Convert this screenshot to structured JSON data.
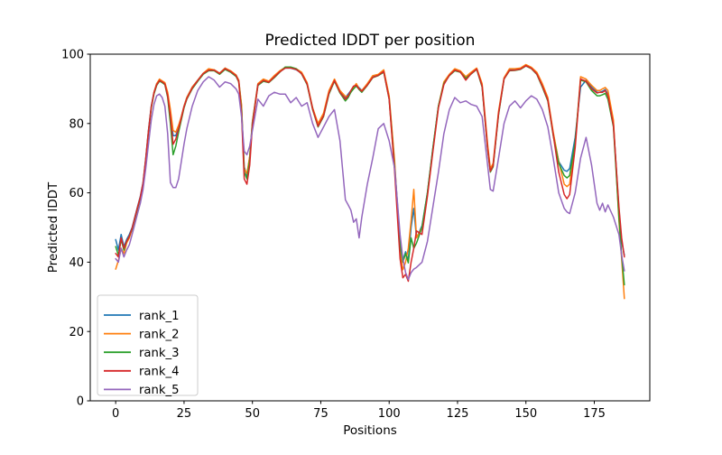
{
  "chart_data": {
    "type": "line",
    "title": "Predicted lDDT per position",
    "xlabel": "Positions",
    "ylabel": "Predicted lDDT",
    "xlim": [
      -9.3,
      195.3
    ],
    "ylim": [
      0,
      100
    ],
    "xticks": [
      0,
      25,
      50,
      75,
      100,
      125,
      150,
      175
    ],
    "yticks": [
      0,
      20,
      40,
      60,
      80,
      100
    ],
    "grid": false,
    "legend_position": "lower left",
    "line_width": 1.5,
    "axis_color": "#000000",
    "legend_border_color": "#cccccc",
    "x": [
      0,
      1,
      2,
      3,
      4,
      5,
      6,
      7,
      8,
      9,
      10,
      11,
      12,
      13,
      14,
      15,
      16,
      17,
      18,
      19,
      20,
      21,
      22,
      23,
      24,
      25,
      26,
      28,
      30,
      32,
      34,
      36,
      38,
      40,
      42,
      44,
      45,
      46,
      47,
      48,
      49,
      50,
      52,
      54,
      56,
      58,
      60,
      62,
      64,
      66,
      68,
      70,
      72,
      74,
      76,
      78,
      80,
      82,
      84,
      85,
      86,
      87,
      88,
      89,
      90,
      92,
      94,
      96,
      98,
      100,
      102,
      104,
      105,
      106,
      107,
      108,
      109,
      110,
      112,
      114,
      116,
      118,
      120,
      122,
      124,
      126,
      128,
      130,
      132,
      134,
      136,
      137,
      138,
      140,
      142,
      144,
      146,
      148,
      150,
      152,
      154,
      156,
      158,
      160,
      162,
      164,
      165,
      166,
      168,
      170,
      172,
      174,
      176,
      177,
      178,
      179,
      180,
      182,
      184,
      185,
      186
    ],
    "series": [
      {
        "name": "rank_1",
        "color": "#1f77b4",
        "values": [
          46.5,
          43.5,
          48,
          44.5,
          46.5,
          48,
          50,
          53,
          56,
          59,
          63,
          70,
          78,
          85,
          89,
          91.5,
          92.5,
          92,
          91.5,
          88.5,
          83,
          76.5,
          76.5,
          79,
          82,
          85,
          87.5,
          90.5,
          92.5,
          94.5,
          95.5,
          95.5,
          94.5,
          96,
          95,
          94,
          92.5,
          85,
          67.5,
          65,
          70.5,
          80.5,
          91.5,
          92.5,
          92,
          93.5,
          95,
          96,
          96,
          95.5,
          94.5,
          91.5,
          84.5,
          79.5,
          82.5,
          89,
          92.5,
          89.5,
          87.5,
          88.5,
          89.5,
          90.5,
          91.2,
          90.3,
          89.5,
          91.3,
          93.5,
          94,
          95.2,
          87.5,
          68,
          46,
          40.5,
          43,
          40.5,
          50,
          55.5,
          47,
          50.5,
          60,
          73,
          85,
          91.5,
          94,
          95.5,
          95,
          93.3,
          94.5,
          95.8,
          91,
          73,
          66.5,
          68,
          83,
          93,
          95.5,
          95.5,
          95.8,
          96.8,
          96,
          94.5,
          91,
          87,
          77,
          69,
          66.5,
          66.2,
          67,
          76,
          90.5,
          92.5,
          90.5,
          89,
          89,
          89.3,
          89.8,
          88.5,
          80,
          55,
          46,
          42
        ]
      },
      {
        "name": "rank_2",
        "color": "#ff7f0e",
        "values": [
          38,
          40.5,
          44,
          42.5,
          45.5,
          47,
          49.5,
          52.5,
          55.5,
          58.5,
          62.5,
          69.5,
          77.5,
          84.5,
          89,
          91.5,
          92.8,
          92.3,
          91.8,
          89,
          84,
          78,
          77.5,
          79.5,
          82,
          85,
          87.5,
          90.5,
          92.5,
          94.5,
          95.8,
          95.5,
          94.5,
          96,
          95.2,
          94,
          92.5,
          85.5,
          67,
          65.5,
          70.5,
          80.5,
          91.5,
          92.8,
          92.2,
          93.8,
          95.2,
          96.2,
          96.2,
          95.8,
          94.8,
          91.8,
          84.5,
          80,
          83,
          89.5,
          92.8,
          89.5,
          87.8,
          88,
          89,
          90.5,
          91.5,
          90,
          89.5,
          91.5,
          93.8,
          94.2,
          95.5,
          88,
          69,
          43,
          37.8,
          40,
          44,
          52,
          61,
          47,
          50,
          59.5,
          72.5,
          85,
          92,
          94.2,
          95.8,
          95.2,
          93.5,
          94.8,
          96,
          91.5,
          74,
          67,
          68.5,
          83.5,
          93.2,
          95.8,
          95.8,
          96,
          97,
          96.2,
          94.8,
          91.5,
          87.5,
          77.5,
          69,
          62.5,
          61.8,
          62.5,
          74,
          93.5,
          92.8,
          91,
          89.5,
          89.5,
          90,
          90.4,
          89.5,
          81,
          52,
          41,
          29.5
        ]
      },
      {
        "name": "rank_3",
        "color": "#2ca02c",
        "values": [
          44.5,
          42,
          46.5,
          43.5,
          46,
          47.5,
          49.5,
          52.5,
          55.5,
          58.5,
          62.5,
          69.5,
          77.5,
          84.5,
          88.5,
          91,
          92.2,
          91.8,
          91.2,
          87.5,
          80,
          71,
          73.5,
          77.5,
          81,
          84.5,
          87,
          90,
          92.2,
          94.2,
          95.2,
          95.2,
          94.2,
          95.6,
          94.8,
          93.6,
          92,
          84,
          66,
          64,
          69.5,
          80,
          91,
          92.2,
          91.8,
          93.2,
          94.8,
          96.3,
          96.3,
          95.8,
          94.3,
          91.2,
          84,
          79,
          82,
          88.5,
          92.2,
          88.8,
          86.5,
          87.5,
          89,
          90,
          90.8,
          89.8,
          89,
          91,
          93.2,
          93.8,
          94.8,
          87,
          67,
          45,
          40,
          42.5,
          39.8,
          47,
          44,
          45.5,
          50,
          60,
          73,
          85,
          91.5,
          93.8,
          95.2,
          94.8,
          93,
          94.3,
          95.6,
          90.5,
          72.5,
          66,
          67.5,
          82.5,
          92.8,
          95.2,
          95.3,
          95.6,
          96.6,
          95.8,
          94.2,
          90.5,
          86.5,
          76.5,
          68.5,
          65,
          64.3,
          65,
          74.5,
          92.5,
          92,
          89.5,
          88,
          88,
          88.3,
          88.7,
          87,
          79,
          53,
          42,
          33.5
        ]
      },
      {
        "name": "rank_4",
        "color": "#d62728",
        "values": [
          42.5,
          41.5,
          47,
          44,
          46,
          47.5,
          49.8,
          52.8,
          55.8,
          58.8,
          62.8,
          69.8,
          77.8,
          84.8,
          88.8,
          91.2,
          92.4,
          92,
          91.4,
          88,
          82,
          74,
          75.5,
          78.5,
          81.5,
          84.8,
          87.2,
          90.2,
          92.4,
          94.4,
          95.4,
          95.4,
          94.4,
          95.8,
          95,
          93.8,
          92.2,
          83,
          64,
          62.5,
          68,
          79.5,
          91.2,
          92.4,
          91.9,
          93.4,
          94.9,
          96,
          96,
          95.6,
          94.4,
          91.4,
          84.2,
          79.2,
          82.2,
          88.8,
          92.4,
          89,
          87,
          88,
          89.5,
          90.8,
          91,
          90,
          89.3,
          91.1,
          93.3,
          93.9,
          95,
          87,
          66,
          41,
          35.5,
          36.5,
          34.5,
          40,
          44,
          49,
          48,
          59,
          72,
          84.5,
          91.2,
          93.9,
          95.4,
          94.9,
          92.5,
          94.4,
          95.7,
          90.8,
          72.8,
          66.2,
          67.8,
          82.8,
          92.9,
          95.3,
          95.4,
          95.7,
          96.7,
          95.9,
          94.3,
          90.8,
          86.8,
          76.8,
          66,
          59.5,
          58.3,
          59.5,
          73,
          92.8,
          92.2,
          90,
          88.8,
          89,
          89,
          89.5,
          88,
          79.5,
          56,
          47,
          41.5
        ]
      },
      {
        "name": "rank_5",
        "color": "#9467bd",
        "values": [
          41,
          40,
          44,
          41.5,
          43.5,
          45,
          48,
          51,
          54,
          57,
          61,
          67,
          74,
          81,
          85.5,
          88,
          88.5,
          87.5,
          85,
          77,
          63,
          61.5,
          61.5,
          64,
          69,
          74,
          78.5,
          85,
          89.5,
          92,
          93.5,
          92.5,
          90.5,
          92,
          91.5,
          90,
          88.5,
          82,
          72,
          71,
          73.5,
          78,
          87,
          85,
          88,
          89,
          88.5,
          88.5,
          86,
          87.5,
          85,
          86,
          80,
          76,
          79,
          82,
          84,
          75,
          58,
          56.5,
          55,
          51.5,
          52.5,
          47,
          53,
          62.5,
          70,
          78.5,
          80,
          75,
          67,
          48,
          41,
          37,
          35,
          37,
          38,
          38.5,
          40,
          46,
          56,
          66,
          77,
          84,
          87.5,
          86,
          86.5,
          85.5,
          85,
          82,
          68,
          61,
          60.5,
          70,
          80,
          85,
          86.5,
          84.5,
          86.5,
          88,
          87,
          84,
          79,
          70,
          60,
          55.5,
          54.5,
          54,
          60,
          70,
          76,
          68,
          57,
          55,
          57,
          54.5,
          56.5,
          53,
          48,
          42,
          37.5
        ]
      }
    ]
  }
}
